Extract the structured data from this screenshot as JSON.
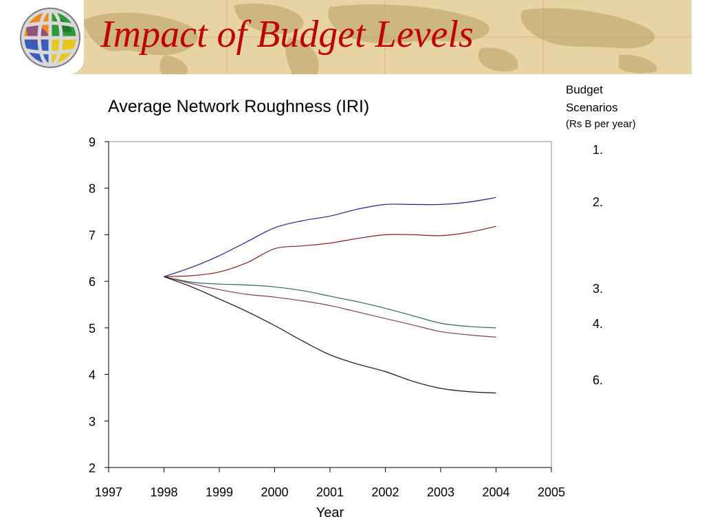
{
  "slide": {
    "title": "Impact of Budget Levels"
  },
  "banner": {
    "logo_icon": "globe-icon",
    "background": "#e7d3a4",
    "map_color": "#b99f62"
  },
  "legend": {
    "title_line1": "Budget",
    "title_line2": "Scenarios",
    "unit": "(Rs B per year)",
    "items": [
      "1.",
      "2.",
      "3.",
      "4.",
      "6."
    ]
  },
  "chart_data": {
    "type": "line",
    "title": "Average Network Roughness (IRI)",
    "xlabel": "Year",
    "ylabel": "",
    "xlim": [
      1997,
      2005
    ],
    "ylim": [
      2,
      9
    ],
    "xticks": [
      1997,
      1998,
      1999,
      2000,
      2001,
      2002,
      2003,
      2004,
      2005
    ],
    "yticks": [
      2,
      3,
      4,
      5,
      6,
      7,
      8,
      9
    ],
    "grid": false,
    "legend_position": "right",
    "series": [
      {
        "color": "#1f1f8f",
        "x": [
          1998,
          1998.5,
          1999,
          1999.5,
          2000,
          2000.5,
          2001,
          2001.5,
          2002,
          2002.5,
          2003,
          2003.5,
          2004
        ],
        "y": [
          6.1,
          6.3,
          6.55,
          6.85,
          7.15,
          7.3,
          7.4,
          7.55,
          7.65,
          7.65,
          7.65,
          7.7,
          7.8
        ]
      },
      {
        "color": "#8b1a1a",
        "x": [
          1998,
          1998.5,
          1999,
          1999.5,
          2000,
          2000.5,
          2001,
          2001.5,
          2002,
          2002.5,
          2003,
          2003.5,
          2004
        ],
        "y": [
          6.1,
          6.12,
          6.2,
          6.4,
          6.7,
          6.76,
          6.82,
          6.92,
          7.0,
          7.0,
          6.98,
          7.05,
          7.18
        ]
      },
      {
        "color": "#2e6b4f",
        "x": [
          1998,
          1998.5,
          1999,
          1999.5,
          2000,
          2000.5,
          2001,
          2001.5,
          2002,
          2002.5,
          2003,
          2003.5,
          2004
        ],
        "y": [
          6.1,
          5.98,
          5.94,
          5.92,
          5.88,
          5.8,
          5.68,
          5.56,
          5.42,
          5.26,
          5.1,
          5.03,
          5.0
        ]
      },
      {
        "color": "#8b3a62",
        "x": [
          1998,
          1998.5,
          1999,
          1999.5,
          2000,
          2000.5,
          2001,
          2001.5,
          2002,
          2002.5,
          2003,
          2003.5,
          2004
        ],
        "y": [
          6.1,
          5.95,
          5.82,
          5.72,
          5.66,
          5.58,
          5.48,
          5.34,
          5.2,
          5.06,
          4.92,
          4.85,
          4.8
        ]
      },
      {
        "color": "#111111",
        "x": [
          1998,
          1998.5,
          1999,
          1999.5,
          2000,
          2000.5,
          2001,
          2001.5,
          2002,
          2002.5,
          2003,
          2003.5,
          2004
        ],
        "y": [
          6.1,
          5.88,
          5.62,
          5.35,
          5.05,
          4.72,
          4.42,
          4.22,
          4.06,
          3.85,
          3.7,
          3.63,
          3.6
        ]
      }
    ]
  }
}
